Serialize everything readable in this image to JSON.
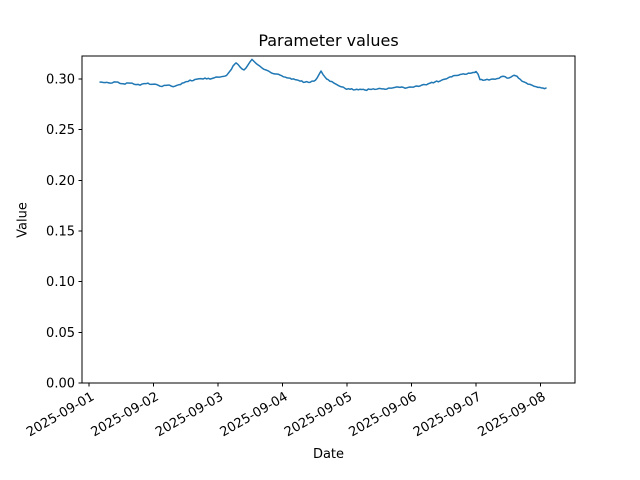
{
  "figure": {
    "title": "Parameter values",
    "xlabel": "Date",
    "ylabel": "Value",
    "background_color": "#ffffff",
    "line_color": "#1f77b4"
  },
  "chart_data": {
    "type": "line",
    "title": "Parameter values",
    "xlabel": "Date",
    "ylabel": "Value",
    "grid": false,
    "legend": null,
    "x_unit": "days since 2025-09-01 00:00",
    "x_tick_positions": [
      0,
      1,
      2,
      3,
      4,
      5,
      6,
      7
    ],
    "x_tick_labels": [
      "2025-09-01",
      "2025-09-02",
      "2025-09-03",
      "2025-09-04",
      "2025-09-05",
      "2025-09-06",
      "2025-09-07",
      "2025-09-08"
    ],
    "x_tick_rotation_deg": 30,
    "y_tick_values": [
      0.0,
      0.05,
      0.1,
      0.15,
      0.2,
      0.25,
      0.3
    ],
    "y_tick_labels": [
      "0.00",
      "0.05",
      "0.10",
      "0.15",
      "0.20",
      "0.25",
      "0.30"
    ],
    "xlim": [
      -0.109,
      7.535
    ],
    "ylim": [
      0.0,
      0.3228
    ],
    "noise_amplitude": 0.0007,
    "series": [
      {
        "name": "parameter-values",
        "color": "#1f77b4",
        "line_width": 1.5,
        "points": [
          [
            0.171,
            0.297
          ],
          [
            0.248,
            0.2965
          ],
          [
            0.326,
            0.296
          ],
          [
            0.388,
            0.2972
          ],
          [
            0.45,
            0.297
          ],
          [
            0.496,
            0.2955
          ],
          [
            0.558,
            0.295
          ],
          [
            0.605,
            0.2962
          ],
          [
            0.667,
            0.296
          ],
          [
            0.729,
            0.2945
          ],
          [
            0.791,
            0.294
          ],
          [
            0.853,
            0.2955
          ],
          [
            0.915,
            0.296
          ],
          [
            0.961,
            0.2948
          ],
          [
            1.023,
            0.295
          ],
          [
            1.101,
            0.293
          ],
          [
            1.163,
            0.2938
          ],
          [
            1.225,
            0.294
          ],
          [
            1.271,
            0.2932
          ],
          [
            1.333,
            0.293
          ],
          [
            1.395,
            0.2945
          ],
          [
            1.442,
            0.296
          ],
          [
            1.504,
            0.2975
          ],
          [
            1.566,
            0.299
          ],
          [
            1.612,
            0.2985
          ],
          [
            1.674,
            0.3
          ],
          [
            1.736,
            0.3005
          ],
          [
            1.798,
            0.301
          ],
          [
            1.876,
            0.3
          ],
          [
            1.938,
            0.3012
          ],
          [
            2.0,
            0.302
          ],
          [
            2.062,
            0.3025
          ],
          [
            2.109,
            0.303
          ],
          [
            2.155,
            0.3055
          ],
          [
            2.186,
            0.308
          ],
          [
            2.233,
            0.313
          ],
          [
            2.279,
            0.316
          ],
          [
            2.31,
            0.3145
          ],
          [
            2.341,
            0.312
          ],
          [
            2.372,
            0.31
          ],
          [
            2.403,
            0.309
          ],
          [
            2.434,
            0.311
          ],
          [
            2.465,
            0.314
          ],
          [
            2.496,
            0.317
          ],
          [
            2.527,
            0.3195
          ],
          [
            2.558,
            0.3175
          ],
          [
            2.589,
            0.3155
          ],
          [
            2.62,
            0.314
          ],
          [
            2.682,
            0.311
          ],
          [
            2.744,
            0.309
          ],
          [
            2.806,
            0.307
          ],
          [
            2.884,
            0.305
          ],
          [
            2.961,
            0.304
          ],
          [
            3.039,
            0.302
          ],
          [
            3.116,
            0.301
          ],
          [
            3.194,
            0.2995
          ],
          [
            3.271,
            0.298
          ],
          [
            3.349,
            0.297
          ],
          [
            3.426,
            0.2968
          ],
          [
            3.488,
            0.298
          ],
          [
            3.535,
            0.301
          ],
          [
            3.566,
            0.3045
          ],
          [
            3.597,
            0.308
          ],
          [
            3.628,
            0.3045
          ],
          [
            3.659,
            0.302
          ],
          [
            3.705,
            0.2995
          ],
          [
            3.767,
            0.2975
          ],
          [
            3.829,
            0.295
          ],
          [
            3.891,
            0.2928
          ],
          [
            3.969,
            0.2908
          ],
          [
            4.047,
            0.29
          ],
          [
            4.124,
            0.2895
          ],
          [
            4.202,
            0.29
          ],
          [
            4.279,
            0.2892
          ],
          [
            4.357,
            0.2898
          ],
          [
            4.434,
            0.2898
          ],
          [
            4.512,
            0.2908
          ],
          [
            4.589,
            0.29
          ],
          [
            4.667,
            0.2911
          ],
          [
            4.744,
            0.2918
          ],
          [
            4.822,
            0.2918
          ],
          [
            4.899,
            0.291
          ],
          [
            4.977,
            0.2922
          ],
          [
            5.054,
            0.2928
          ],
          [
            5.132,
            0.2932
          ],
          [
            5.209,
            0.2945
          ],
          [
            5.287,
            0.296
          ],
          [
            5.364,
            0.2972
          ],
          [
            5.442,
            0.298
          ],
          [
            5.519,
            0.3
          ],
          [
            5.597,
            0.3022
          ],
          [
            5.674,
            0.3035
          ],
          [
            5.752,
            0.3045
          ],
          [
            5.829,
            0.3048
          ],
          [
            5.907,
            0.3058
          ],
          [
            5.953,
            0.3065
          ],
          [
            6.0,
            0.3075
          ],
          [
            6.031,
            0.305
          ],
          [
            6.062,
            0.2995
          ],
          [
            6.109,
            0.2988
          ],
          [
            6.171,
            0.2998
          ],
          [
            6.233,
            0.2998
          ],
          [
            6.295,
            0.2998
          ],
          [
            6.357,
            0.3008
          ],
          [
            6.419,
            0.3028
          ],
          [
            6.481,
            0.301
          ],
          [
            6.543,
            0.302
          ],
          [
            6.589,
            0.3038
          ],
          [
            6.636,
            0.3028
          ],
          [
            6.682,
            0.3
          ],
          [
            6.744,
            0.2972
          ],
          [
            6.806,
            0.295
          ],
          [
            6.868,
            0.294
          ],
          [
            6.93,
            0.2925
          ],
          [
            6.992,
            0.2918
          ],
          [
            7.039,
            0.2912
          ],
          [
            7.085,
            0.2912
          ]
        ]
      }
    ]
  }
}
